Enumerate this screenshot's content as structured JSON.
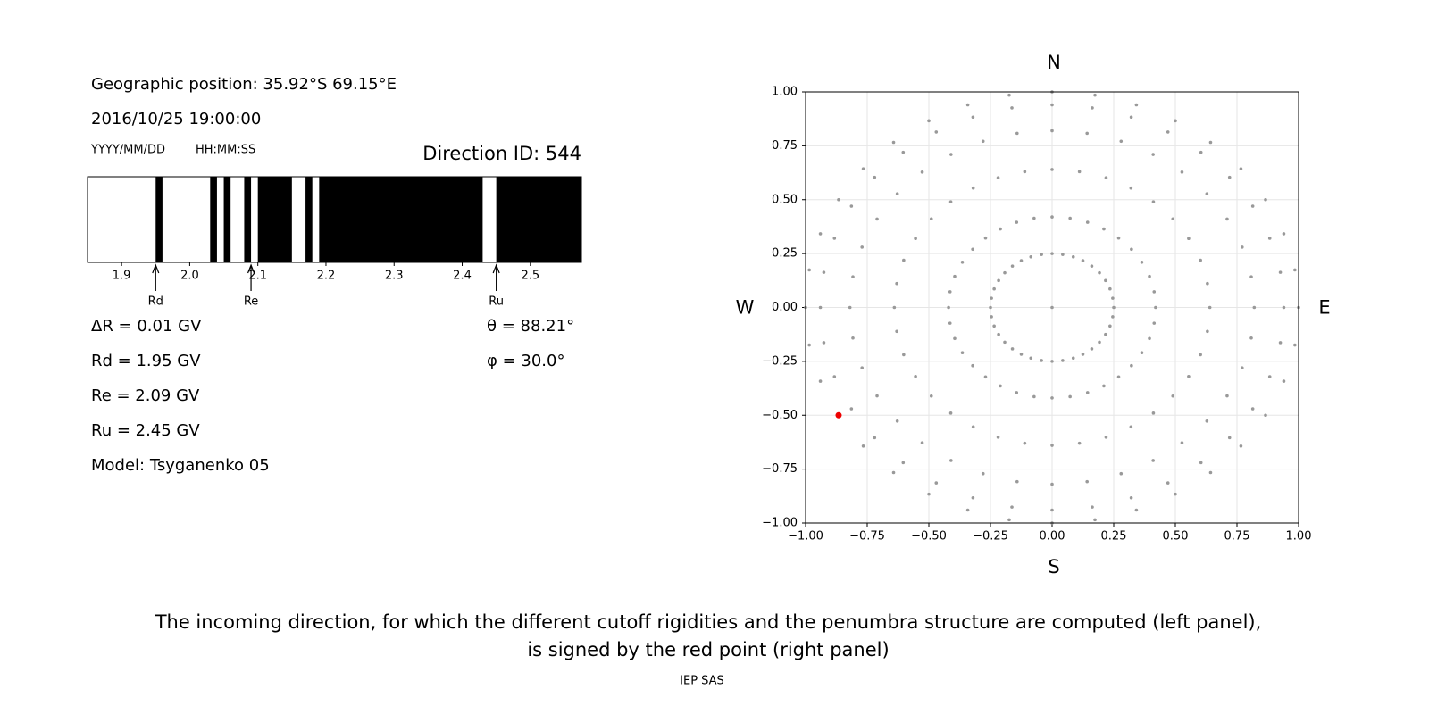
{
  "header": {
    "position": "Geographic position: 35.92°S 69.15°E",
    "datetime": "2016/10/25 19:00:00",
    "date_format": "YYYY/MM/DD",
    "time_format": "HH:MM:SS",
    "direction_id": "Direction ID: 544"
  },
  "info_left": [
    "ΔR = 0.01 GV",
    "Rd = 1.95 GV",
    "Re = 2.09 GV",
    "Ru = 2.45 GV",
    "Model: Tsyganenko 05"
  ],
  "info_right": [
    "θ = 88.21°",
    "φ = 30.0°"
  ],
  "caption": [
    "The incoming direction, for which the different cutoff rigidities and the penumbra structure are computed (left panel),",
    "is signed by the red point (right panel)"
  ],
  "footer": "IEP SAS",
  "chart_data": [
    {
      "type": "penumbra",
      "xlim": [
        1.85,
        2.575
      ],
      "xticks": [
        1.9,
        {
          "value": 2,
          "label": "2.0"
        },
        2.1,
        2.2,
        2.3,
        2.4,
        2.5
      ],
      "band_color": "#000000",
      "bands": [
        [
          1.95,
          1.96
        ],
        [
          2.03,
          2.04
        ],
        [
          2.05,
          2.06
        ],
        [
          2.08,
          2.09
        ],
        [
          2.1,
          2.15
        ],
        [
          2.17,
          2.18
        ],
        [
          2.19,
          2.43
        ],
        [
          2.45,
          2.575
        ]
      ],
      "markers": [
        {
          "label": "Rd",
          "value": 1.95
        },
        {
          "label": "Re",
          "value": 2.09
        },
        {
          "label": "Ru",
          "value": 2.45
        }
      ]
    },
    {
      "type": "scatter",
      "xlim": [
        -1,
        1
      ],
      "ylim": [
        -1,
        1
      ],
      "xticks": [
        {
          "value": -1,
          "label": "−1.00"
        },
        {
          "value": -0.75,
          "label": "−0.75"
        },
        {
          "value": -0.5,
          "label": "−0.50"
        },
        {
          "value": -0.25,
          "label": "−0.25"
        },
        {
          "value": 0,
          "label": "0.00"
        },
        {
          "value": 0.25,
          "label": "0.25"
        },
        {
          "value": 0.5,
          "label": "0.50"
        },
        {
          "value": 0.75,
          "label": "0.75"
        },
        {
          "value": 1,
          "label": "1.00"
        }
      ],
      "yticks": [
        {
          "value": -1,
          "label": "−1.00"
        },
        {
          "value": -0.75,
          "label": "−0.75"
        },
        {
          "value": -0.5,
          "label": "−0.50"
        },
        {
          "value": -0.25,
          "label": "−0.25"
        },
        {
          "value": 0,
          "label": "0.00"
        },
        {
          "value": 0.25,
          "label": "0.25"
        },
        {
          "value": 0.5,
          "label": "0.50"
        },
        {
          "value": 0.75,
          "label": "0.75"
        },
        {
          "value": 1,
          "label": "1.00"
        }
      ],
      "grid": true,
      "directions": {
        "north": "N",
        "south": "S",
        "west": "W",
        "east": "E"
      },
      "series": [
        {
          "color": "#999999",
          "x": [
            0
          ],
          "y": [
            0
          ]
        },
        {
          "color": "#999999",
          "x": [
            0.25,
            0.246,
            0.235,
            0.217,
            0.192,
            0.161,
            0.125,
            0.086,
            0.043,
            0,
            -0.043,
            -0.086,
            -0.125,
            -0.161,
            -0.192,
            -0.217,
            -0.235,
            -0.246,
            -0.25,
            -0.246,
            -0.235,
            -0.217,
            -0.192,
            -0.161,
            -0.125,
            -0.086,
            -0.043,
            0,
            0.043,
            0.086,
            0.125,
            0.161,
            0.192,
            0.217,
            0.235,
            0.246
          ],
          "y": [
            0,
            0.043,
            0.086,
            0.125,
            0.161,
            0.192,
            0.217,
            0.235,
            0.246,
            0.25,
            0.246,
            0.235,
            0.217,
            0.192,
            0.161,
            0.125,
            0.086,
            0.043,
            0,
            -0.043,
            -0.086,
            -0.125,
            -0.161,
            -0.192,
            -0.217,
            -0.235,
            -0.246,
            -0.25,
            -0.246,
            -0.235,
            -0.217,
            -0.192,
            -0.161,
            -0.125,
            -0.086,
            -0.043
          ]
        },
        {
          "color": "#999999",
          "x": [
            0.42,
            0.414,
            0.395,
            0.364,
            0.322,
            0.27,
            0.21,
            0.144,
            0.073,
            0,
            -0.073,
            -0.144,
            -0.21,
            -0.27,
            -0.322,
            -0.364,
            -0.395,
            -0.414,
            -0.42,
            -0.414,
            -0.395,
            -0.364,
            -0.322,
            -0.27,
            -0.21,
            -0.144,
            -0.073,
            0,
            0.073,
            0.144,
            0.21,
            0.27,
            0.322,
            0.364,
            0.395,
            0.414
          ],
          "y": [
            0,
            0.073,
            0.144,
            0.21,
            0.27,
            0.322,
            0.364,
            0.395,
            0.414,
            0.42,
            0.414,
            0.395,
            0.364,
            0.322,
            0.27,
            0.21,
            0.144,
            0.073,
            0,
            -0.073,
            -0.144,
            -0.21,
            -0.27,
            -0.322,
            -0.364,
            -0.395,
            -0.414,
            -0.42,
            -0.414,
            -0.395,
            -0.364,
            -0.322,
            -0.27,
            -0.21,
            -0.144,
            -0.073
          ]
        },
        {
          "color": "#999999",
          "x": [
            0.64,
            0.63,
            0.602,
            0.554,
            0.49,
            0.411,
            0.32,
            0.219,
            0.111,
            0,
            -0.111,
            -0.219,
            -0.32,
            -0.411,
            -0.49,
            -0.554,
            -0.602,
            -0.63,
            -0.64,
            -0.63,
            -0.602,
            -0.554,
            -0.49,
            -0.411,
            -0.32,
            -0.219,
            -0.111,
            0,
            0.111,
            0.219,
            0.32,
            0.411,
            0.49,
            0.554,
            0.602,
            0.63
          ],
          "y": [
            0,
            0.111,
            0.219,
            0.32,
            0.411,
            0.49,
            0.554,
            0.602,
            0.63,
            0.64,
            0.63,
            0.602,
            0.554,
            0.49,
            0.411,
            0.32,
            0.219,
            0.111,
            0,
            -0.111,
            -0.219,
            -0.32,
            -0.411,
            -0.49,
            -0.554,
            -0.602,
            -0.63,
            -0.64,
            -0.63,
            -0.602,
            -0.554,
            -0.49,
            -0.411,
            -0.32,
            -0.219,
            -0.111
          ]
        },
        {
          "color": "#999999",
          "x": [
            0.82,
            0.808,
            0.771,
            0.71,
            0.628,
            0.527,
            0.41,
            0.28,
            0.142,
            0,
            -0.142,
            -0.28,
            -0.41,
            -0.527,
            -0.628,
            -0.71,
            -0.771,
            -0.808,
            -0.82,
            -0.808,
            -0.771,
            -0.71,
            -0.628,
            -0.527,
            -0.41,
            -0.28,
            -0.142,
            0,
            0.142,
            0.28,
            0.41,
            0.527,
            0.628,
            0.71,
            0.771,
            0.808
          ],
          "y": [
            0,
            0.142,
            0.28,
            0.41,
            0.527,
            0.628,
            0.71,
            0.771,
            0.808,
            0.82,
            0.808,
            0.771,
            0.71,
            0.628,
            0.527,
            0.41,
            0.28,
            0.142,
            0,
            -0.142,
            -0.28,
            -0.41,
            -0.527,
            -0.628,
            -0.71,
            -0.771,
            -0.808,
            -0.82,
            -0.808,
            -0.771,
            -0.71,
            -0.628,
            -0.527,
            -0.41,
            -0.28,
            -0.142
          ]
        },
        {
          "color": "#999999",
          "x": [
            0.94,
            0.926,
            0.883,
            0.814,
            0.72,
            0.604,
            0.47,
            0.321,
            0.163,
            0,
            -0.163,
            -0.321,
            -0.47,
            -0.604,
            -0.72,
            -0.814,
            -0.883,
            -0.926,
            -0.94,
            -0.926,
            -0.883,
            -0.814,
            -0.72,
            -0.604,
            -0.47,
            -0.321,
            -0.163,
            0,
            0.163,
            0.321,
            0.47,
            0.604,
            0.72,
            0.814,
            0.883,
            0.926
          ],
          "y": [
            0,
            0.163,
            0.321,
            0.47,
            0.604,
            0.72,
            0.814,
            0.883,
            0.926,
            0.94,
            0.926,
            0.883,
            0.814,
            0.72,
            0.604,
            0.47,
            0.321,
            0.163,
            0,
            -0.163,
            -0.321,
            -0.47,
            -0.604,
            -0.72,
            -0.814,
            -0.883,
            -0.926,
            -0.94,
            -0.926,
            -0.883,
            -0.814,
            -0.72,
            -0.604,
            -0.47,
            -0.321,
            -0.163
          ]
        },
        {
          "color": "#999999",
          "x": [
            1,
            0.985,
            0.94,
            0.866,
            0.766,
            0.643,
            0.5,
            0.342,
            0.174,
            0,
            -0.174,
            -0.342,
            -0.5,
            -0.643,
            -0.766,
            -0.866,
            -0.94,
            -0.985,
            -1,
            -0.985,
            -0.94,
            -0.866,
            -0.766,
            -0.643,
            -0.5,
            -0.342,
            -0.174,
            0,
            0.174,
            0.342,
            0.5,
            0.643,
            0.766,
            0.866,
            0.94,
            0.985
          ],
          "y": [
            0,
            0.174,
            0.342,
            0.5,
            0.643,
            0.766,
            0.866,
            0.94,
            0.985,
            1,
            0.985,
            0.94,
            0.866,
            0.766,
            0.643,
            0.5,
            0.342,
            0.174,
            0,
            -0.174,
            -0.342,
            -0.5,
            -0.643,
            -0.766,
            -0.866,
            -0.94,
            -0.985,
            -1,
            -0.985,
            -0.94,
            -0.866,
            -0.766,
            -0.643,
            -0.5,
            -0.342,
            -0.174
          ]
        },
        {
          "color": "#ee0000",
          "highlight": true,
          "x": [
            -0.866
          ],
          "y": [
            -0.5
          ]
        }
      ]
    }
  ]
}
